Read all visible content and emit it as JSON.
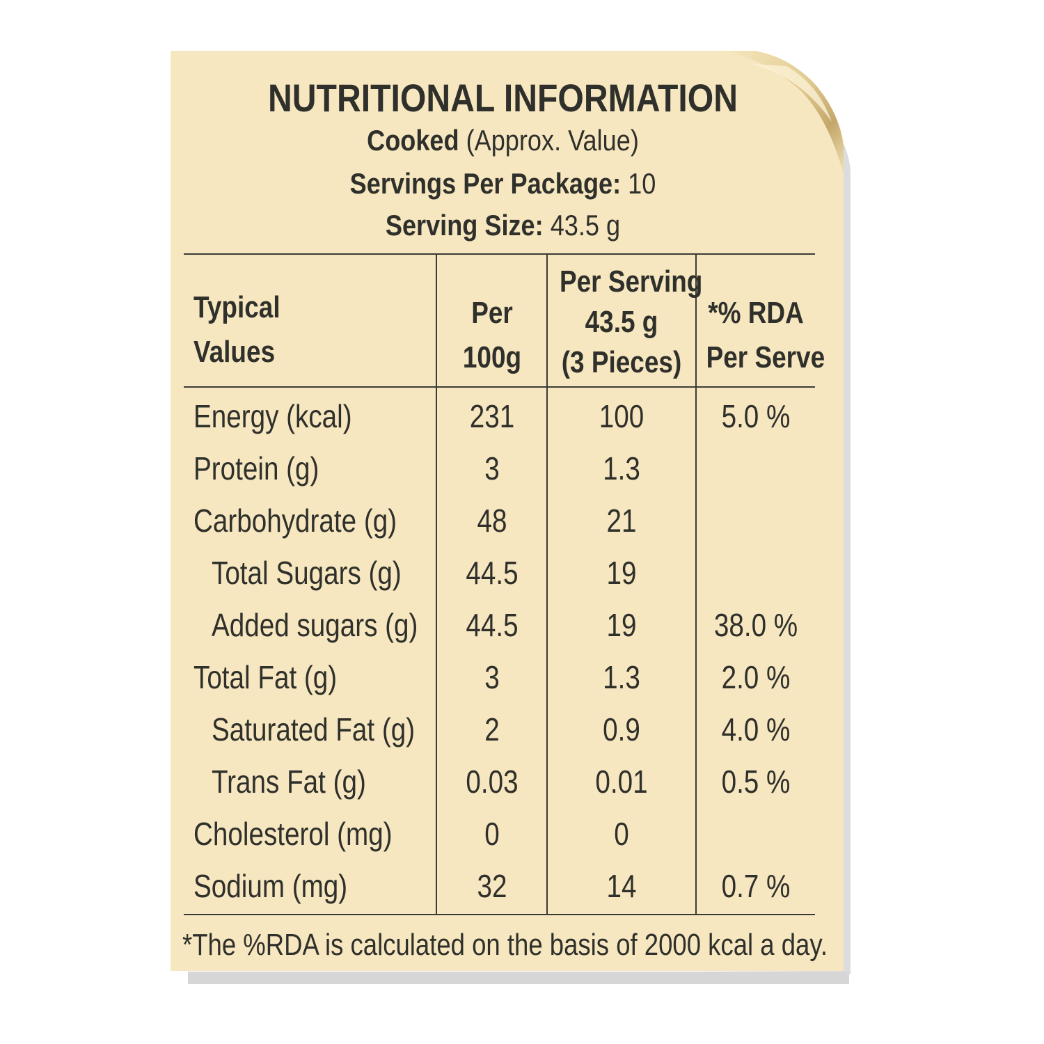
{
  "panel": {
    "title": "NUTRITIONAL INFORMATION",
    "cooked_bold": "Cooked",
    "cooked_note": "(Approx. Value)",
    "servings_label": "Servings Per Package:",
    "servings_value": "10",
    "size_label": "Serving Size:",
    "size_value": "43.5 g"
  },
  "table": {
    "headers": {
      "col0_line1": "Typical",
      "col0_line2": "Values",
      "col1_line1": "Per",
      "col1_line2": "100g",
      "col2_line1": "Per Serving",
      "col2_line2": "43.5 g",
      "col2_line3": "(3 Pieces)",
      "col3_line1": "*% RDA",
      "col3_line2": "Per Serve"
    },
    "rows": [
      {
        "name": "Energy (kcal)",
        "per100": "231",
        "perServing": "100",
        "rda": "5.0 %"
      },
      {
        "name": "Protein (g)",
        "per100": "3",
        "perServing": "1.3",
        "rda": ""
      },
      {
        "name": "Carbohydrate (g)",
        "per100": "48",
        "perServing": "21",
        "rda": ""
      },
      {
        "name": "Total Sugars (g)",
        "per100": "44.5",
        "perServing": "19",
        "rda": ""
      },
      {
        "name": "Added sugars (g)",
        "per100": "44.5",
        "perServing": "19",
        "rda": "38.0 %"
      },
      {
        "name": "Total Fat (g)",
        "per100": "3",
        "perServing": "1.3",
        "rda": "2.0 %"
      },
      {
        "name": "Saturated Fat (g)",
        "per100": "2",
        "perServing": "0.9",
        "rda": "4.0 %"
      },
      {
        "name": "Trans Fat (g)",
        "per100": "0.03",
        "perServing": "0.01",
        "rda": "0.5 %"
      },
      {
        "name": "Cholesterol (mg)",
        "per100": "0",
        "perServing": "0",
        "rda": ""
      },
      {
        "name": "Sodium (mg)",
        "per100": "32",
        "perServing": "14",
        "rda": "0.7 %"
      }
    ]
  },
  "footnote": "*The %RDA is calculated on the basis of 2000 kcal a day.",
  "colors": {
    "paper": "#f7e7c0",
    "curl": "#c9b07a",
    "text": "#2f302b"
  }
}
